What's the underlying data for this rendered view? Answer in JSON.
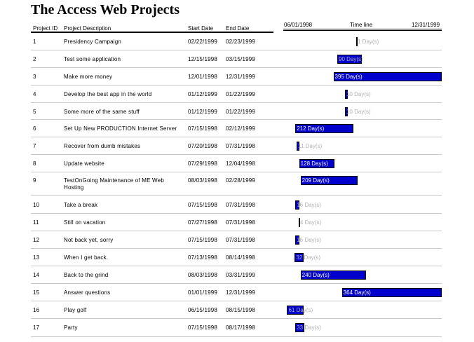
{
  "report": {
    "title": "The Access Web Projects",
    "columns": {
      "id": "Project ID",
      "description": "Project Description",
      "start": "Start Date",
      "end": "End Date"
    },
    "timeline": {
      "start_label": "06/01/1998",
      "center_label": "Time line",
      "end_label": "12/31/1999",
      "range_start": "1998-06-01",
      "range_end": "1999-12-31"
    },
    "bar_color": "#0000cc",
    "projects": [
      {
        "id": "1",
        "description": "Presidency Campaign",
        "start": "02/22/1999",
        "end": "02/23/1999",
        "duration_label": "1 Day(s)"
      },
      {
        "id": "2",
        "description": "Test some application",
        "start": "12/15/1998",
        "end": "03/15/1999",
        "duration_label": "90 Day(s)"
      },
      {
        "id": "3",
        "description": "Make more money",
        "start": "12/01/1998",
        "end": "12/31/1999",
        "duration_label": "395 Day(s)"
      },
      {
        "id": "4",
        "description": "Develop the best app in the world",
        "start": "01/12/1999",
        "end": "01/22/1999",
        "duration_label": "10 Day(s)"
      },
      {
        "id": "5",
        "description": "Some more of the same stuff",
        "start": "01/12/1999",
        "end": "01/22/1999",
        "duration_label": "10 Day(s)"
      },
      {
        "id": "6",
        "description": "Set Up New PRODUCTION Internet Server",
        "start": "07/15/1998",
        "end": "02/12/1999",
        "duration_label": "212 Day(s)"
      },
      {
        "id": "7",
        "description": "Recover from dumb mistakes",
        "start": "07/20/1998",
        "end": "07/31/1998",
        "duration_label": "11 Day(s)"
      },
      {
        "id": "8",
        "description": "Update website",
        "start": "07/29/1998",
        "end": "12/04/1998",
        "duration_label": "128 Day(s)"
      },
      {
        "id": "9",
        "description": "TestOnGoing Maintenance of ME Web Hosting",
        "start": "08/03/1998",
        "end": "02/28/1999",
        "duration_label": "209 Day(s)"
      },
      {
        "id": "10",
        "description": "Take a break",
        "start": "07/15/1998",
        "end": "07/31/1998",
        "duration_label": "16 Day(s)"
      },
      {
        "id": "11",
        "description": "Still on vacation",
        "start": "07/27/1998",
        "end": "07/31/1998",
        "duration_label": "4 Day(s)"
      },
      {
        "id": "12",
        "description": "Not back yet, sorry",
        "start": "07/15/1998",
        "end": "07/31/1998",
        "duration_label": "16 Day(s)"
      },
      {
        "id": "13",
        "description": "When I get back.",
        "start": "07/13/1998",
        "end": "08/14/1998",
        "duration_label": "32 Day(s)"
      },
      {
        "id": "14",
        "description": "Back to the grind",
        "start": "08/03/1998",
        "end": "03/31/1999",
        "duration_label": "240 Day(s)"
      },
      {
        "id": "15",
        "description": "Answer questions",
        "start": "01/01/1999",
        "end": "12/31/1999",
        "duration_label": "364 Day(s)"
      },
      {
        "id": "16",
        "description": "Play golf",
        "start": "06/15/1998",
        "end": "08/15/1998",
        "duration_label": "61 Day(s)"
      },
      {
        "id": "17",
        "description": "Party",
        "start": "07/15/1998",
        "end": "08/17/1998",
        "duration_label": "33 Day(s)"
      }
    ]
  }
}
